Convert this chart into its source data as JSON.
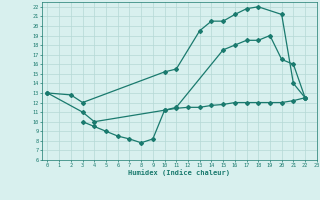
{
  "line1_x": [
    0,
    2,
    3,
    10,
    11,
    13,
    14,
    15,
    16,
    17,
    18,
    20,
    21,
    22
  ],
  "line1_y": [
    13,
    12.8,
    12,
    15.2,
    15.5,
    19.5,
    20.5,
    20.5,
    21.2,
    21.8,
    22,
    21.2,
    14,
    12.5
  ],
  "line2_x": [
    0,
    3,
    4,
    10,
    11,
    15,
    16,
    17,
    18,
    19,
    20,
    21,
    22
  ],
  "line2_y": [
    13,
    11,
    10,
    11.2,
    11.5,
    17.5,
    18,
    18.5,
    18.5,
    19,
    16.5,
    16,
    12.5
  ],
  "line3_x": [
    3,
    4,
    5,
    6,
    7,
    8,
    9,
    10,
    11,
    12,
    13,
    14,
    15,
    16,
    17,
    18,
    19,
    20,
    21,
    22
  ],
  "line3_y": [
    10,
    9.5,
    9,
    8.5,
    8.2,
    7.8,
    8.2,
    11.2,
    11.4,
    11.5,
    11.5,
    11.7,
    11.8,
    12,
    12,
    12,
    12,
    12,
    12.2,
    12.5
  ],
  "color": "#1a7a6e",
  "bg_color": "#d8f0ee",
  "grid_color": "#b5d9d5",
  "xlim": [
    -0.5,
    23
  ],
  "ylim": [
    6,
    22.5
  ],
  "xlabel": "Humidex (Indice chaleur)",
  "xtick_labels": [
    "0",
    "1",
    "2",
    "3",
    "4",
    "5",
    "6",
    "7",
    "8",
    "9",
    "10",
    "11",
    "12",
    "13",
    "14",
    "15",
    "16",
    "17",
    "18",
    "19",
    "20",
    "21",
    "22",
    "23"
  ],
  "xticks": [
    0,
    1,
    2,
    3,
    4,
    5,
    6,
    7,
    8,
    9,
    10,
    11,
    12,
    13,
    14,
    15,
    16,
    17,
    18,
    19,
    20,
    21,
    22,
    23
  ],
  "yticks": [
    6,
    7,
    8,
    9,
    10,
    11,
    12,
    13,
    14,
    15,
    16,
    17,
    18,
    19,
    20,
    21,
    22
  ]
}
